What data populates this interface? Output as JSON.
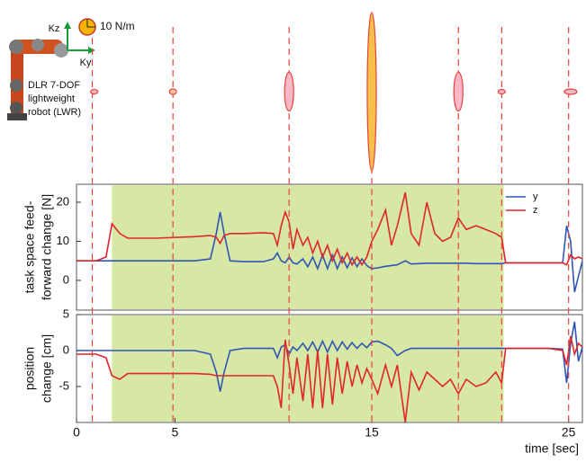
{
  "chart_data": [
    {
      "type": "ellipse",
      "x": [
        0.9,
        4.9,
        10.8,
        15,
        19.4,
        21.6,
        25.1
      ],
      "ky": [
        4.4,
        4.4,
        5.6,
        5.6,
        5.6,
        4.4,
        7.8
      ],
      "kz": [
        2.8,
        3.3,
        24,
        98,
        24,
        2.8,
        3.3
      ],
      "colors": [
        "#f9b8c8",
        "#f9c7a0",
        "#f9b8c8",
        "#f7c04a",
        "#f9b8c8",
        "#f9b8c8",
        "#f9b8c8"
      ],
      "edge_color": "#e8413a",
      "scale": {
        "value": 10,
        "label": "10 N/m",
        "color": "#f5b400"
      },
      "axis_labels": {
        "z": "Kz",
        "y": "Ky"
      },
      "robot_label": [
        "DLR 7-DOF",
        "lightweight",
        "robot (LWR)"
      ],
      "event_lines": [
        0.8,
        4.9,
        10.8,
        15,
        19.4,
        21.6,
        25.0
      ],
      "event_color": "#e8413a",
      "xlim": [
        0,
        25.7
      ]
    },
    {
      "type": "line",
      "ylabel": [
        "task space feed-",
        "forward change [N]"
      ],
      "x": [
        0,
        1,
        1.5,
        1.8,
        2.2,
        2.6,
        4,
        6,
        6.8,
        7.1,
        7.3,
        7.5,
        7.8,
        8.5,
        9.5,
        10,
        10.2,
        10.4,
        10.6,
        10.8,
        11.0,
        11.2,
        11.5,
        11.75,
        12.0,
        12.25,
        12.5,
        12.75,
        13.0,
        13.25,
        13.5,
        13.75,
        14.0,
        14.25,
        14.5,
        14.75,
        15.0,
        15.3,
        15.7,
        16.0,
        16.3,
        16.7,
        17.0,
        17.4,
        17.8,
        18.2,
        18.6,
        19.0,
        19.4,
        19.8,
        20.3,
        20.8,
        21.3,
        21.6,
        21.8,
        22.5,
        24,
        24.7,
        24.9,
        25.1,
        25.3,
        25.5,
        25.7
      ],
      "series": [
        {
          "name": "y",
          "color": "#2f55b5",
          "values": [
            5,
            5,
            5,
            5,
            5,
            5,
            5,
            5,
            5.5,
            12,
            17.5,
            12,
            5,
            4.8,
            4.8,
            5.5,
            7,
            5,
            4.5,
            6,
            4.5,
            4.2,
            5.5,
            3.5,
            6,
            3,
            6.5,
            3,
            6.5,
            3,
            6,
            3.2,
            5.8,
            3.5,
            5.5,
            3.8,
            3,
            3.2,
            3.6,
            3.8,
            4,
            5,
            4.2,
            4.3,
            4.4,
            4.4,
            4.4,
            4.4,
            4.4,
            4.4,
            4.3,
            4.3,
            4.3,
            4.3,
            4.5,
            4.5,
            4.5,
            4.5,
            14,
            10,
            -3,
            1,
            5
          ]
        },
        {
          "name": "z",
          "color": "#e0262a",
          "values": [
            5,
            5,
            6,
            14.5,
            12,
            10.8,
            10.8,
            11.2,
            11.5,
            11,
            9.5,
            11.5,
            12,
            12,
            12.2,
            12,
            9,
            14,
            17.5,
            15,
            8,
            13,
            9,
            11,
            7,
            10,
            6,
            9,
            5,
            8,
            4.5,
            7,
            4,
            6,
            4,
            6,
            10,
            13,
            18,
            9,
            14,
            22.5,
            12,
            9,
            20,
            12,
            10,
            11,
            16,
            13,
            14,
            13,
            12,
            11,
            4.5,
            4.5,
            4.5,
            4.5,
            4,
            6.5,
            5.5,
            6,
            5.5
          ]
        }
      ],
      "xlim": [
        0,
        25.7
      ],
      "ylim": [
        -7.6,
        24.6
      ],
      "yticks": [
        0,
        10,
        20
      ],
      "shaded": [
        1.8,
        21.7
      ],
      "shade_color": "#d7e7a4",
      "legend": "upper right"
    },
    {
      "type": "line",
      "ylabel": [
        "position",
        "change [cm]"
      ],
      "x": [
        0,
        1,
        1.5,
        1.8,
        2.2,
        2.6,
        4,
        6,
        6.8,
        7.1,
        7.3,
        7.5,
        7.8,
        8.5,
        9.5,
        10,
        10.2,
        10.4,
        10.6,
        10.8,
        11.0,
        11.2,
        11.5,
        11.75,
        12.0,
        12.25,
        12.5,
        12.75,
        13.0,
        13.25,
        13.5,
        13.75,
        14.0,
        14.25,
        14.5,
        14.75,
        15.0,
        15.3,
        15.7,
        16.0,
        16.3,
        16.7,
        17.0,
        17.4,
        17.8,
        18.2,
        18.6,
        19.0,
        19.4,
        19.8,
        20.3,
        20.8,
        21.3,
        21.6,
        21.8,
        22.5,
        24,
        24.7,
        24.9,
        25.1,
        25.3,
        25.5,
        25.7
      ],
      "series": [
        {
          "color": "#2f55b5",
          "values": [
            0,
            0,
            0,
            0,
            0,
            0,
            0,
            0,
            -0.5,
            -3,
            -5.7,
            -3,
            0,
            0.3,
            0.3,
            0.3,
            -1,
            0.5,
            0.8,
            -0.5,
            0.5,
            0,
            1,
            0,
            1.2,
            -0.2,
            1.3,
            -0.2,
            1.3,
            0,
            1.2,
            0.2,
            1.1,
            0.3,
            1,
            0.4,
            1.2,
            1.3,
            0.8,
            0.3,
            -0.7,
            0,
            0.3,
            0.3,
            0.3,
            0.3,
            0.3,
            0.3,
            0.3,
            0.3,
            0.3,
            0.3,
            0.3,
            0.3,
            0.3,
            0.3,
            0.3,
            0.2,
            -4.5,
            1,
            4,
            -1.5,
            0.5
          ]
        },
        {
          "color": "#e0262a",
          "values": [
            -0.5,
            -0.5,
            -1,
            -3.5,
            -4,
            -3.2,
            -3.2,
            -3.2,
            -3.3,
            -3.5,
            -3.5,
            -3.5,
            -3.5,
            -3.5,
            -3.5,
            -3.5,
            -5,
            -8,
            1.5,
            -2,
            -6,
            -1,
            -7,
            -0.5,
            -8,
            0,
            -8,
            -0.5,
            -7.5,
            -1,
            -6,
            -1.5,
            -5,
            -2,
            -4.5,
            -2.5,
            -4,
            -6,
            -2,
            -5,
            -2,
            -10,
            -3,
            -5.5,
            -3,
            -4,
            -5,
            -4,
            -6,
            -4,
            -5,
            -4.5,
            -3,
            -4.5,
            0.3,
            0.3,
            0.3,
            0,
            -2,
            2,
            -0.5,
            1,
            0.5
          ]
        }
      ],
      "xlim": [
        0,
        25.7
      ],
      "ylim": [
        -10,
        5
      ],
      "yticks": [
        5,
        0,
        -5
      ],
      "xticks": [
        0,
        5,
        15,
        25
      ],
      "xlabel": "time [sec]",
      "shaded": [
        1.8,
        21.7
      ],
      "shade_color": "#d7e7a4"
    }
  ]
}
